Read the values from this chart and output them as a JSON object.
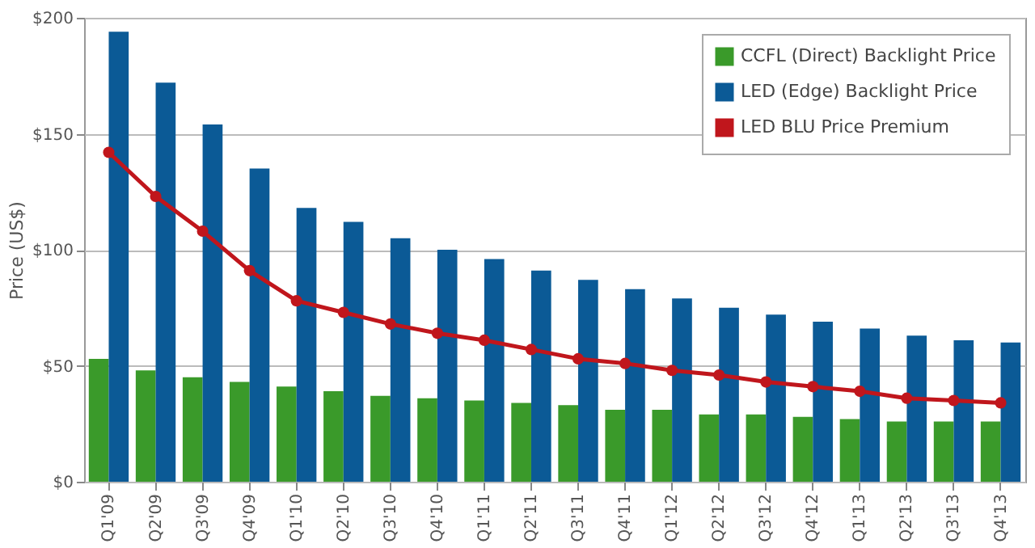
{
  "chart_data": {
    "type": "bar",
    "ylabel": "Price (US$)",
    "categories": [
      "Q1'09",
      "Q2'09",
      "Q3'09",
      "Q4'09",
      "Q1'10",
      "Q2'10",
      "Q3'10",
      "Q4'10",
      "Q1'11",
      "Q2'11",
      "Q3'11",
      "Q4'11",
      "Q1'12",
      "Q2'12",
      "Q3'12",
      "Q4'12",
      "Q1'13",
      "Q2'13",
      "Q3'13",
      "Q4'13"
    ],
    "series": [
      {
        "name": "CCFL (Direct) Backlight Price",
        "color": "#3a9a2a",
        "values": [
          53,
          48,
          45,
          43,
          41,
          39,
          37,
          36,
          35,
          34,
          33,
          31,
          31,
          29,
          29,
          28,
          27,
          26,
          26,
          26
        ]
      },
      {
        "name": "LED (Edge) Backlight Price",
        "color": "#0b5a96",
        "values": [
          194,
          172,
          154,
          135,
          118,
          112,
          105,
          100,
          96,
          91,
          87,
          83,
          79,
          75,
          72,
          69,
          66,
          63,
          61,
          60
        ]
      },
      {
        "name": "LED BLU Price Premium",
        "type": "line",
        "color": "#c0161c",
        "marker": "circle",
        "values": [
          142,
          123,
          108,
          91,
          78,
          73,
          68,
          64,
          61,
          57,
          53,
          51,
          48,
          46,
          43,
          41,
          39,
          36,
          35,
          34
        ]
      }
    ],
    "ylim": [
      0,
      200
    ],
    "yticks": [
      {
        "value": 0,
        "label": "$0"
      },
      {
        "value": 50,
        "label": "$50"
      },
      {
        "value": 100,
        "label": "$100"
      },
      {
        "value": 150,
        "label": "$150"
      },
      {
        "value": 200,
        "label": "$200"
      }
    ],
    "grid": "y",
    "legend": "top right"
  }
}
